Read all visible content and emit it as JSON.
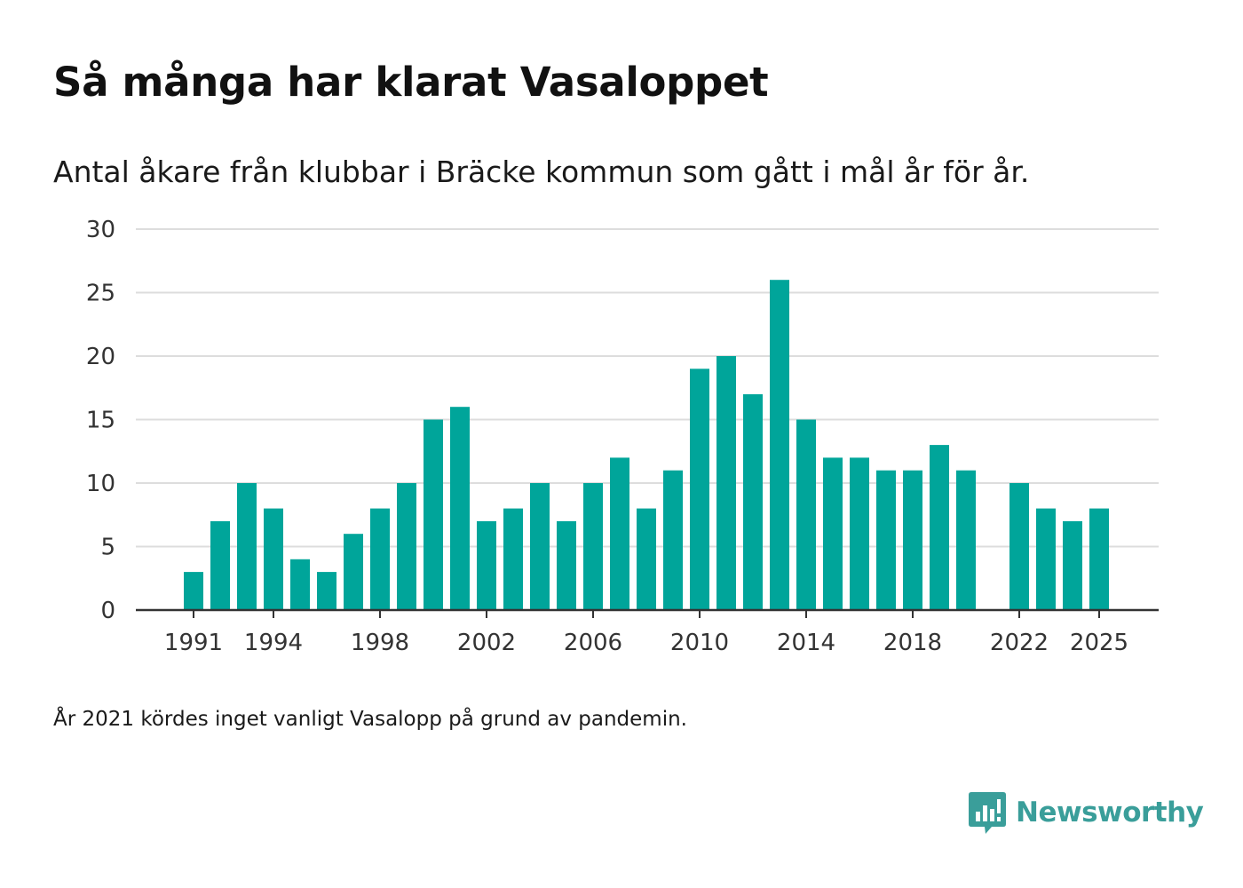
{
  "header": {
    "title": "Så många har klarat Vasaloppet",
    "subtitle": "Antal åkare från klubbar i Bräcke kommun som gått i mål år för år."
  },
  "footer": {
    "note": "År 2021 kördes inget vanligt Vasalopp på grund av pandemin.",
    "brand": "Newsworthy"
  },
  "colors": {
    "bar": "#00a59a",
    "brand": "#3a9e9a",
    "grid": "#dddddd",
    "axis": "#333333"
  },
  "chart_data": {
    "type": "bar",
    "title": "Så många har klarat Vasaloppet",
    "subtitle": "Antal åkare från klubbar i Bräcke kommun som gått i mål år för år.",
    "xlabel": "",
    "ylabel": "",
    "x": [
      1991,
      1992,
      1993,
      1994,
      1995,
      1996,
      1997,
      1998,
      1999,
      2000,
      2001,
      2002,
      2003,
      2004,
      2005,
      2006,
      2007,
      2008,
      2009,
      2010,
      2011,
      2012,
      2013,
      2014,
      2015,
      2016,
      2017,
      2018,
      2019,
      2020,
      2021,
      2022,
      2023,
      2024,
      2025
    ],
    "values": [
      3,
      7,
      10,
      8,
      4,
      3,
      6,
      8,
      10,
      15,
      16,
      7,
      8,
      10,
      7,
      10,
      12,
      8,
      11,
      19,
      20,
      17,
      26,
      15,
      12,
      12,
      11,
      11,
      13,
      11,
      null,
      10,
      8,
      7,
      8
    ],
    "x_ticks": [
      "1991",
      "1994",
      "1998",
      "2002",
      "2006",
      "2010",
      "2014",
      "2018",
      "2022",
      "2025"
    ],
    "y_ticks": [
      "0",
      "5",
      "10",
      "15",
      "20",
      "25",
      "30"
    ],
    "ylim": [
      0,
      30
    ],
    "grid": true,
    "legend": "none"
  }
}
